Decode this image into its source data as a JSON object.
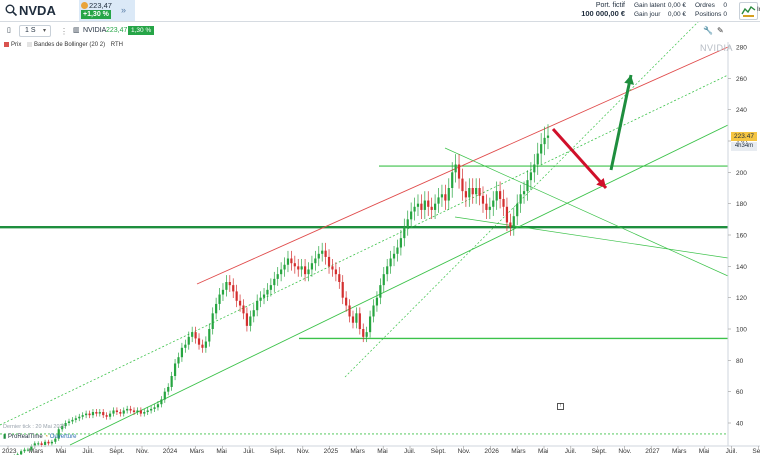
{
  "header": {
    "ticker": "NVDA",
    "quote_price": "223,47",
    "quote_change": "+1,30 %",
    "portfolio_label": "Port. fictif",
    "portfolio_value": "100 000,00 €",
    "gain_latent_label": "Gain latent",
    "gain_latent_value": "0,00 €",
    "gain_jour_label": "Gain jour",
    "gain_jour_value": "0,00 €",
    "ordres_label": "Ordres",
    "ordres_value": "0",
    "positions_label": "Positions",
    "positions_value": "0",
    "app_label": "In"
  },
  "toolbar": {
    "interval": "1 S",
    "instrument": "NVIDIA",
    "price": "223,47",
    "change": "1,30 %",
    "tools_icon": "wrench-icon",
    "style_icon": "pencil-icon"
  },
  "legend": {
    "price_label": "Prix",
    "bollinger_label": "Bandes de Bollinger (20 2)",
    "rth_label": "RTH",
    "price_color": "#d9534f",
    "bollinger_color": "#cccccc"
  },
  "watermark": "NVIDIA",
  "price_tag": {
    "price": "223.47",
    "countdown": "4h34m"
  },
  "footer": {
    "last_tick": "Dernier tick : 20 Mai 2026",
    "brand": "ProRealTime",
    "opening": "Ouverture"
  },
  "colors": {
    "up": "#27a541",
    "down": "#d32f2f",
    "channel_top": "#e04b4b",
    "support": "#3cc24a",
    "arrow_down": "#d0102a",
    "arrow_up": "#1e8e3e"
  },
  "chart_data": {
    "type": "candlestick",
    "title": "",
    "ylim": [
      30,
      290
    ],
    "y_ticks": [
      40,
      60,
      80,
      100,
      120,
      140,
      160,
      180,
      200,
      220,
      240,
      260,
      280
    ],
    "x_ticks": [
      "2023",
      "Mars",
      "Mai",
      "Juil.",
      "Sept.",
      "Nov.",
      "2024",
      "Mars",
      "Mai",
      "Juil.",
      "Sept.",
      "Nov.",
      "2025",
      "Mars",
      "Mai",
      "Juil.",
      "Sept.",
      "Nov.",
      "2026",
      "Mars",
      "Mai",
      "Juil.",
      "Sept.",
      "Nov.",
      "2027",
      "Mars",
      "Mai",
      "Juil.",
      "Sept."
    ],
    "last_price": 223.47,
    "horizontal_levels": [
      {
        "value": 204,
        "color": "#3cc24a"
      },
      {
        "value": 165,
        "color": "#1e8e3e"
      },
      {
        "value": 94,
        "color": "#3cc24a"
      },
      {
        "value": 33,
        "color": "#3cc24a"
      }
    ],
    "weekly_closes": [
      15,
      16,
      17,
      19,
      20,
      22,
      23,
      23,
      25,
      27,
      27,
      26,
      28,
      27,
      28,
      30,
      36,
      38,
      40,
      41,
      42,
      43,
      44,
      45,
      46,
      45,
      47,
      46,
      47,
      45,
      44,
      46,
      48,
      47,
      46,
      48,
      49,
      48,
      47,
      48,
      46,
      47,
      48,
      49,
      50,
      52,
      55,
      60,
      63,
      70,
      78,
      82,
      88,
      90,
      95,
      98,
      94,
      90,
      88,
      92,
      100,
      110,
      116,
      122,
      125,
      130,
      128,
      124,
      118,
      115,
      110,
      102,
      108,
      112,
      118,
      120,
      122,
      125,
      128,
      132,
      135,
      138,
      141,
      145,
      142,
      140,
      138,
      140,
      135,
      138,
      142,
      145,
      148,
      150,
      146,
      140,
      138,
      135,
      130,
      120,
      115,
      108,
      104,
      110,
      100,
      95,
      98,
      108,
      115,
      120,
      128,
      135,
      140,
      145,
      148,
      152,
      158,
      165,
      170,
      175,
      178,
      180,
      176,
      182,
      178,
      176,
      180,
      184,
      186,
      182,
      190,
      200,
      205,
      196,
      188,
      184,
      190,
      186,
      190,
      185,
      180,
      176,
      178,
      182,
      188,
      183,
      178,
      168,
      165,
      172,
      180,
      186,
      188,
      195,
      200,
      205,
      212,
      218,
      222,
      223.47
    ]
  }
}
